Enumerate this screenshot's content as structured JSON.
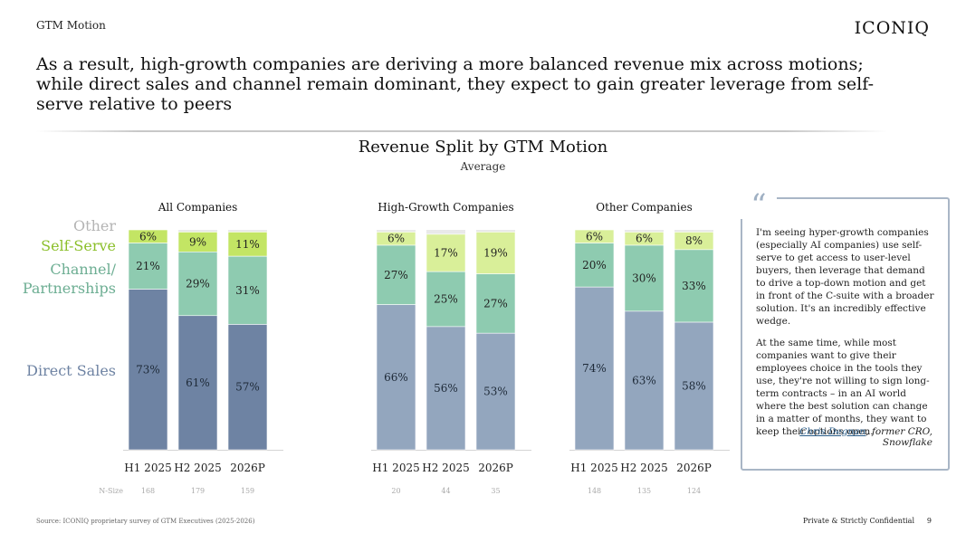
{
  "header": {
    "section": "GTM Motion",
    "brand": "ICONIQ",
    "headline": "As a result, high-growth companies are deriving a more balanced revenue mix across motions; while direct sales and channel remain dominant, they expect to gain greater leverage from self-serve relative to peers"
  },
  "legend": {
    "other": "Other",
    "self_serve": "Self-Serve",
    "channel_line1": "Channel/",
    "channel_line2": "Partnerships",
    "direct": "Direct Sales"
  },
  "chart_data": {
    "type": "bar",
    "stacked": true,
    "title": "Revenue Split by GTM Motion",
    "subtitle": "Average",
    "unit": "%",
    "categories": [
      "H1 2025",
      "H2 2025",
      "2026P"
    ],
    "series_names": [
      "Direct Sales",
      "Channel/Partnerships",
      "Self-Serve",
      "Other"
    ],
    "nsize_label": "N-Size",
    "groups": [
      {
        "name": "All Companies",
        "bars": [
          {
            "category": "H1 2025",
            "direct": 73,
            "channel": 21,
            "self_serve": 6,
            "other": 0,
            "n": "168"
          },
          {
            "category": "H2 2025",
            "direct": 61,
            "channel": 29,
            "self_serve": 9,
            "other": 1,
            "n": "179"
          },
          {
            "category": "2026P",
            "direct": 57,
            "channel": 31,
            "self_serve": 11,
            "other": 1,
            "n": "159"
          }
        ]
      },
      {
        "name": "High-Growth Companies",
        "bars": [
          {
            "category": "H1 2025",
            "direct": 66,
            "channel": 27,
            "self_serve": 6,
            "other": 1,
            "n": "20"
          },
          {
            "category": "H2 2025",
            "direct": 56,
            "channel": 25,
            "self_serve": 17,
            "other": 2,
            "n": "44"
          },
          {
            "category": "2026P",
            "direct": 53,
            "channel": 27,
            "self_serve": 19,
            "other": 1,
            "n": "35"
          }
        ]
      },
      {
        "name": "Other Companies",
        "bars": [
          {
            "category": "H1 2025",
            "direct": 74,
            "channel": 20,
            "self_serve": 6,
            "other": 0,
            "n": "148"
          },
          {
            "category": "H2 2025",
            "direct": 63,
            "channel": 30,
            "self_serve": 6,
            "other": 1,
            "n": "135"
          },
          {
            "category": "2026P",
            "direct": 58,
            "channel": 33,
            "self_serve": 8,
            "other": 1,
            "n": "124"
          }
        ]
      }
    ]
  },
  "colors": {
    "direct_all": "#6e83a3",
    "direct_hg": "#93a6be",
    "direct_other": "#93a6be",
    "channel": "#8ecbb0",
    "self_serve_all": "#c3e564",
    "self_serve_hg": "#d9ef99",
    "self_serve_other": "#d9ef99",
    "other": "#e9e9e9",
    "legend_other": "#b4b4b4",
    "legend_self_serve": "#8bbf2a",
    "legend_channel": "#6dae93",
    "legend_direct": "#6e83a3"
  },
  "quote": {
    "p1": "I'm seeing hyper-growth companies (especially AI companies) use self-serve to get access to user-level buyers, then leverage that demand to drive a top-down motion and get in front of the C-suite with a broader solution. It's an incredibly effective wedge.",
    "p2": "At the same time, while most companies want to give their employees choice in the tools they use, they're not willing to sign long-term contracts – in an AI world where the best solution can change in a matter of months, they want to keep their options open.",
    "author": "Chris Degnan",
    "role": ", former CRO, Snowflake"
  },
  "footer": {
    "source": "Source: ICONIQ proprietary survey of GTM Executives (2025-2026)",
    "confidential": "Private & Strictly Confidential",
    "page": "9"
  }
}
